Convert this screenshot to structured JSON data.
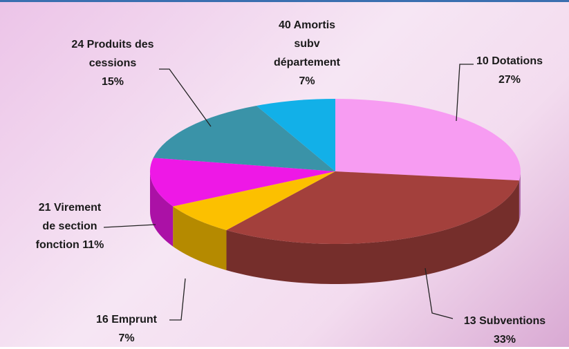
{
  "chart_data": {
    "type": "pie3d",
    "categories": [
      "10 Dotations",
      "13 Subventions",
      "16 Emprunt",
      "21 Virement de section fonction",
      "24 Produits des cessions",
      "40 Amortis subv département"
    ],
    "values": [
      27,
      33,
      7,
      11,
      15,
      7
    ],
    "value_labels": [
      "27%",
      "33%",
      "7%",
      "11%",
      "15%",
      "7%"
    ],
    "colors": [
      "#f79cf2",
      "#a3403c",
      "#fcc000",
      "#ee18e6",
      "#3a93a8",
      "#12b0e8"
    ]
  }
}
